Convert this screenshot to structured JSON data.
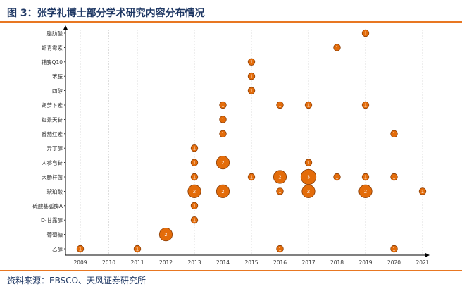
{
  "header": {
    "title": "图 3：张学礼博士部分学术研究内容分布情况"
  },
  "footer": {
    "source": "资料来源：EBSCO、天风证券研究所"
  },
  "colors": {
    "bubble_fill": "#e36c0a",
    "bubble_stroke": "#8a3d06",
    "grid": "#c8c8c8",
    "axis": "#000000",
    "accent": "#e87722",
    "title": "#1f3864"
  },
  "chart_data": {
    "type": "bubble",
    "title": "",
    "xlabel": "",
    "ylabel": "",
    "x_ticks": [
      2009,
      2010,
      2011,
      2012,
      2013,
      2014,
      2015,
      2016,
      2017,
      2018,
      2019,
      2020,
      2021
    ],
    "xlim": [
      2009,
      2021
    ],
    "grid": "vertical dashed",
    "categories": [
      "脂肪酸",
      "虾青霉素",
      "辅酶Q10",
      "苯胺",
      "四醇",
      "胡萝卜素",
      "红景天苷",
      "番茄红素",
      "异丁醇",
      "人参皂苷",
      "大肠杆菌",
      "琥珀酸",
      "硫酸基胍酶A",
      "D-甘露醇",
      "葡萄糖",
      "乙醇"
    ],
    "points": [
      {
        "category": "脂肪酸",
        "year": 2019,
        "count": 1
      },
      {
        "category": "虾青霉素",
        "year": 2018,
        "count": 1
      },
      {
        "category": "辅酶Q10",
        "year": 2015,
        "count": 1
      },
      {
        "category": "苯胺",
        "year": 2015,
        "count": 1
      },
      {
        "category": "四醇",
        "year": 2015,
        "count": 1
      },
      {
        "category": "胡萝卜素",
        "year": 2014,
        "count": 1
      },
      {
        "category": "胡萝卜素",
        "year": 2016,
        "count": 1
      },
      {
        "category": "胡萝卜素",
        "year": 2017,
        "count": 1
      },
      {
        "category": "胡萝卜素",
        "year": 2019,
        "count": 1
      },
      {
        "category": "红景天苷",
        "year": 2014,
        "count": 1
      },
      {
        "category": "番茄红素",
        "year": 2014,
        "count": 1
      },
      {
        "category": "番茄红素",
        "year": 2020,
        "count": 1
      },
      {
        "category": "异丁醇",
        "year": 2013,
        "count": 1
      },
      {
        "category": "人参皂苷",
        "year": 2013,
        "count": 1
      },
      {
        "category": "人参皂苷",
        "year": 2014,
        "count": 2
      },
      {
        "category": "人参皂苷",
        "year": 2017,
        "count": 1
      },
      {
        "category": "大肠杆菌",
        "year": 2013,
        "count": 1
      },
      {
        "category": "大肠杆菌",
        "year": 2015,
        "count": 1
      },
      {
        "category": "大肠杆菌",
        "year": 2016,
        "count": 2
      },
      {
        "category": "大肠杆菌",
        "year": 2017,
        "count": 3
      },
      {
        "category": "大肠杆菌",
        "year": 2018,
        "count": 1
      },
      {
        "category": "大肠杆菌",
        "year": 2019,
        "count": 1
      },
      {
        "category": "大肠杆菌",
        "year": 2020,
        "count": 1
      },
      {
        "category": "琥珀酸",
        "year": 2013,
        "count": 2
      },
      {
        "category": "琥珀酸",
        "year": 2014,
        "count": 2
      },
      {
        "category": "琥珀酸",
        "year": 2016,
        "count": 1
      },
      {
        "category": "琥珀酸",
        "year": 2017,
        "count": 2
      },
      {
        "category": "琥珀酸",
        "year": 2019,
        "count": 2
      },
      {
        "category": "琥珀酸",
        "year": 2021,
        "count": 1
      },
      {
        "category": "硫酸基胍酶A",
        "year": 2013,
        "count": 1
      },
      {
        "category": "D-甘露醇",
        "year": 2013,
        "count": 1
      },
      {
        "category": "葡萄糖",
        "year": 2012,
        "count": 2
      },
      {
        "category": "乙醇",
        "year": 2009,
        "count": 1
      },
      {
        "category": "乙醇",
        "year": 2011,
        "count": 1
      },
      {
        "category": "乙醇",
        "year": 2016,
        "count": 1
      },
      {
        "category": "乙醇",
        "year": 2020,
        "count": 1
      }
    ]
  }
}
